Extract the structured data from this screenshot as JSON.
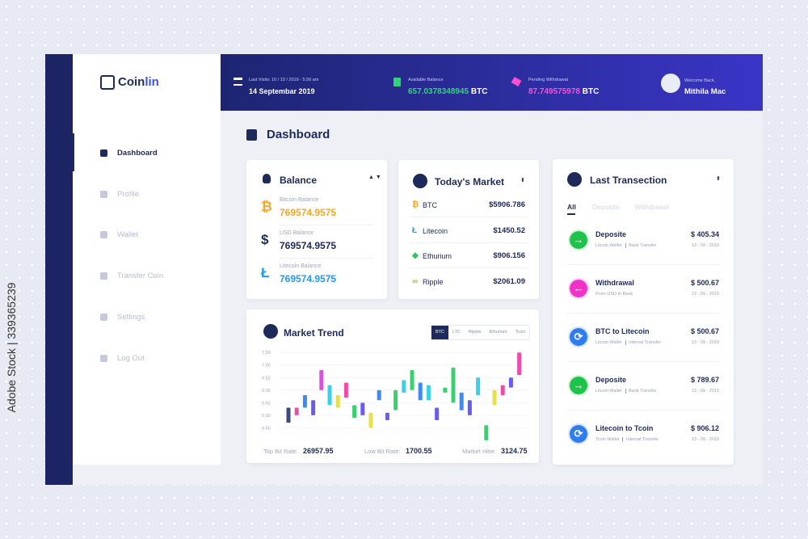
{
  "brand": {
    "name_start": "Coin",
    "name_end": "lin"
  },
  "sidebar": {
    "menu": [
      "Dashboard",
      "Profile",
      "Wallet",
      "Transfer Coin",
      "Settings",
      "Log Out"
    ],
    "active": 0
  },
  "header": {
    "last_visit_label": "Last Visits: 10 / 10 / 2019 - 5.56 am",
    "last_visit_date": "14 Septembar 2019",
    "available_label": "Available Balance",
    "available_value": "657.0378348945",
    "available_unit": "BTC",
    "pending_label": "Pending Withdrawal",
    "pending_value": "87.749575978",
    "pending_unit": "BTC",
    "welcome": "Welcome Back,",
    "user": "Mithila Mac"
  },
  "page_title": "Dashboard",
  "balance": {
    "title": "Balance",
    "items": [
      {
        "label": "Bitcoin Balance",
        "value": "769574.9575",
        "icon": "₿",
        "color": "#f5a623"
      },
      {
        "label": "USD Balance",
        "value": "769574.9575",
        "icon": "$",
        "color": "#1e2a5a"
      },
      {
        "label": "Litecoin Balance",
        "value": "769574.9575",
        "icon": "Ł",
        "color": "#1e9bf0"
      }
    ]
  },
  "market": {
    "title": "Today's Market",
    "rows": [
      {
        "coin": "BTC",
        "price": "$5906.786",
        "icon": "₿",
        "color": "#f5a623"
      },
      {
        "coin": "Litecoin",
        "price": "$1450.52",
        "icon": "Ł",
        "color": "#1e9bf0"
      },
      {
        "coin": "Ethurium",
        "price": "$906.156",
        "icon": "◆",
        "color": "#2fc85a"
      },
      {
        "coin": "Ripple",
        "price": "$2061.09",
        "icon": "∞",
        "color": "#7ed321"
      }
    ]
  },
  "market_trend": {
    "title": "Market Trend",
    "tabs": [
      "BTC",
      "LTC",
      "Ripple",
      "Ethurium",
      "Tcoin"
    ],
    "active_tab": 0,
    "ylim": [
      3.9,
      7.7
    ],
    "yticks": [
      {
        "value": 4.5,
        "label": "4.50"
      },
      {
        "value": 5,
        "label": "5.00"
      },
      {
        "value": 5.5,
        "label": "5.50"
      },
      {
        "value": 6,
        "label": "6.00"
      },
      {
        "value": 6.5,
        "label": "6.50"
      },
      {
        "value": 7,
        "label": "7.00"
      },
      {
        "value": 7.5,
        "label": "7.50"
      }
    ],
    "candles": [
      {
        "open": 4.7,
        "close": 5.3,
        "color": "#3b4a7a"
      },
      {
        "open": 5.0,
        "close": 5.3,
        "color": "#f04ba8"
      },
      {
        "open": 5.3,
        "close": 5.8,
        "color": "#3d8bf2"
      },
      {
        "open": 5.0,
        "close": 5.6,
        "color": "#6a5cf0"
      },
      {
        "open": 6.0,
        "close": 6.8,
        "color": "#e04be0"
      },
      {
        "open": 5.4,
        "close": 6.2,
        "color": "#3ad0e8"
      },
      {
        "open": 5.3,
        "close": 5.8,
        "color": "#e8e04a"
      },
      {
        "open": 5.7,
        "close": 6.3,
        "color": "#f04ba8"
      },
      {
        "open": 4.9,
        "close": 5.4,
        "color": "#3ad070"
      },
      {
        "open": 5.0,
        "close": 5.5,
        "color": "#6a5cf0"
      },
      {
        "open": 4.5,
        "close": 5.1,
        "color": "#e8e04a"
      },
      {
        "open": 5.6,
        "close": 6.0,
        "color": "#3d8bf2"
      },
      {
        "open": 4.8,
        "close": 5.1,
        "color": "#6a5cf0"
      },
      {
        "open": 5.2,
        "close": 6.0,
        "color": "#3ad070"
      },
      {
        "open": 5.9,
        "close": 6.4,
        "color": "#3ad0e8"
      },
      {
        "open": 6.0,
        "close": 6.8,
        "color": "#3ad070"
      },
      {
        "open": 5.6,
        "close": 6.3,
        "color": "#3d8bf2"
      },
      {
        "open": 5.6,
        "close": 6.2,
        "color": "#3ad0e8"
      },
      {
        "open": 4.8,
        "close": 5.3,
        "color": "#6a5cf0"
      },
      {
        "open": 5.9,
        "close": 6.1,
        "color": "#3ad070"
      },
      {
        "open": 5.5,
        "close": 6.9,
        "color": "#3ad070"
      },
      {
        "open": 5.2,
        "close": 5.9,
        "color": "#3d8bf2"
      },
      {
        "open": 5.0,
        "close": 5.6,
        "color": "#6a5cf0"
      },
      {
        "open": 5.8,
        "close": 6.5,
        "color": "#3ad0e8"
      },
      {
        "open": 4.0,
        "close": 4.6,
        "color": "#3ad070"
      },
      {
        "open": 5.4,
        "close": 6.0,
        "color": "#e8e04a"
      },
      {
        "open": 5.8,
        "close": 6.2,
        "color": "#f04ba8"
      },
      {
        "open": 6.1,
        "close": 6.5,
        "color": "#6a5cf0"
      },
      {
        "open": 6.6,
        "close": 7.5,
        "color": "#f04ba8"
      }
    ],
    "stats": [
      {
        "label": "Top Bit Rate:",
        "value": "26957.95"
      },
      {
        "label": "Low Bit Rate:",
        "value": "1700.55"
      },
      {
        "label": "Market Hike:",
        "value": "3124.75"
      }
    ]
  },
  "transactions": {
    "title": "Last Transection",
    "tabs": [
      "All",
      "Deposite",
      "Withdrawal"
    ],
    "active_tab": 0,
    "items": [
      {
        "title": "Deposite",
        "details": [
          "Litcoin Wallet",
          "Bank Transfer"
        ],
        "amount": "$ 405.34",
        "date": "13 - 09 - 2019",
        "color": "#1fc24a",
        "icon": "→"
      },
      {
        "title": "Withdrawal",
        "details": [
          "From USD to Bank"
        ],
        "amount": "$ 500.67",
        "date": "13 - 09 - 2019",
        "color": "#f032c8",
        "icon": "←"
      },
      {
        "title": "BTC to Litecoin",
        "details": [
          "Litcoin Wallet",
          "Internal Transfer"
        ],
        "amount": "$ 500.67",
        "date": "13 - 09 - 2019",
        "color": "#2f7cf0",
        "icon": "⟳"
      },
      {
        "title": "Deposite",
        "details": [
          "Litcoin Wallet",
          "Bank Transfer"
        ],
        "amount": "$ 789.67",
        "date": "13 - 09 - 2019",
        "color": "#1fc24a",
        "icon": "→"
      },
      {
        "title": "Litecoin to Tcoin",
        "details": [
          "Tcoin Wallet",
          "Internal Transfer"
        ],
        "amount": "$ 906.12",
        "date": "13 - 09 - 2019",
        "color": "#2f7cf0",
        "icon": "⟳"
      }
    ]
  },
  "watermark": "Adobe Stock | 339365239"
}
